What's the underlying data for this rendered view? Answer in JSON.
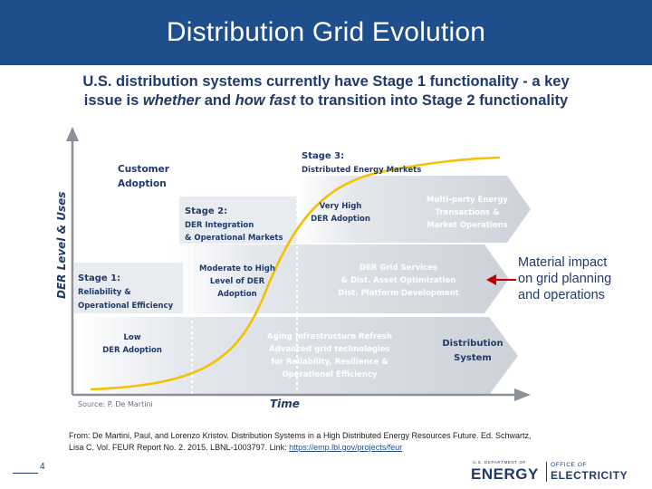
{
  "header": {
    "title": "Distribution Grid Evolution"
  },
  "subtitle": {
    "line1": "U.S. distribution systems currently have Stage 1 functionality - a key",
    "line2_part1": "issue is ",
    "line2_em1": "whether",
    "line2_part2": " and ",
    "line2_em2": "how fast",
    "line2_part3": " to transition into Stage 2 functionality"
  },
  "diagram": {
    "y_axis_label": "DER Level & Uses",
    "x_axis_label": "Time",
    "source": "Source: P. De Martini",
    "customer_adoption": [
      "Customer",
      "Adoption"
    ],
    "stage1": [
      "Stage 1:",
      "Reliability &",
      "Operational Efficiency"
    ],
    "stage2": [
      "Stage 2:",
      "DER Integration",
      "& Operational Markets"
    ],
    "stage3": [
      "Stage 3:",
      "Distributed Energy Markets"
    ],
    "low_der": [
      "Low",
      "DER Adoption"
    ],
    "moderate_der": [
      "Moderate to High",
      "Level of DER",
      "Adoption"
    ],
    "very_high_der": [
      "Very High",
      "DER Adoption"
    ],
    "aging_infra": [
      "Aging Infrastructure Refresh",
      "Advanced grid technologies",
      "for Reliability, Resilience &",
      "Operational Efficiency"
    ],
    "der_grid_services": [
      "DER Grid Services",
      "& Dist. Asset Optimization",
      "Dist. Platform Development"
    ],
    "multiparty": [
      "Multi-party Energy",
      "Transactions &",
      "Market Operations"
    ],
    "distribution_system": [
      "Distribution",
      "System"
    ],
    "colors": {
      "arrow_fill": "#d9dde3",
      "curve": "#f2c200",
      "text_dark": "#1f3a6b",
      "text_white": "#ffffff"
    }
  },
  "callout": {
    "text": [
      "Material impact",
      "on grid planning",
      "and operations"
    ],
    "arrow_color": "#c00000"
  },
  "citation": {
    "line1": "From: De Martini, Paul, and Lorenzo Kristov. Distribution Systems in a High Distributed Energy Resources Future. Ed. Schwartz,",
    "line2": "Lisa C. Vol. FEUR Report No. 2. 2015. LBNL-1003797.  Link: ",
    "link": "https://emp.lbl.gov/projects/feur"
  },
  "footer": {
    "page_number": "4",
    "logo_doe": "U.S. DEPARTMENT OF",
    "logo_energy": "ENERGY",
    "logo_office": "OFFICE OF",
    "logo_electricity": "ELECTRICITY"
  }
}
